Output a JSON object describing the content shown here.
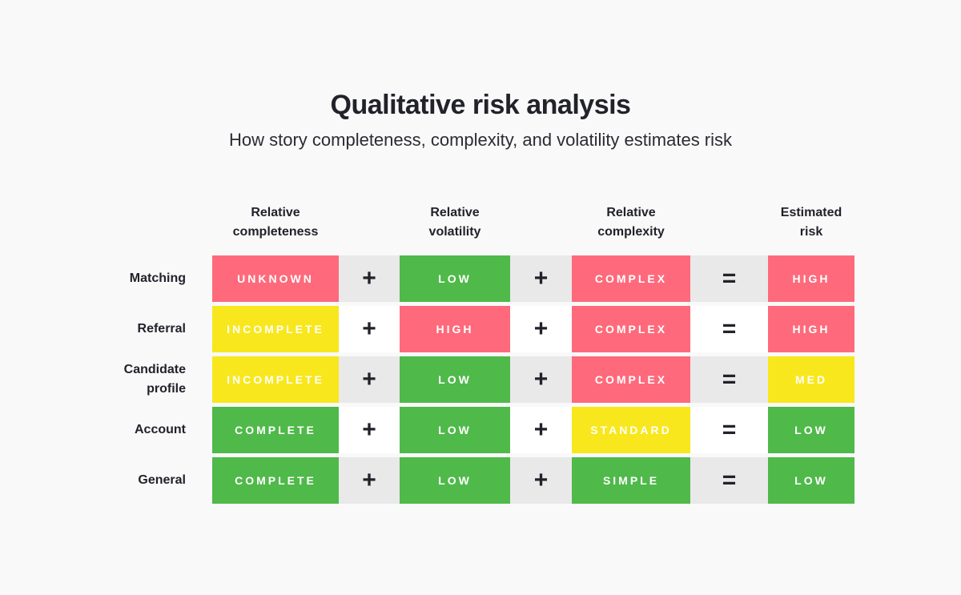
{
  "header": {
    "title": "Qualitative risk analysis",
    "subtitle": "How story completeness, complexity, and volatility estimates risk"
  },
  "columns": [
    {
      "line1": "Relative",
      "line2": "completeness"
    },
    {
      "line1": "Relative",
      "line2": "volatility"
    },
    {
      "line1": "Relative",
      "line2": "complexity"
    },
    {
      "line1": "Estimated",
      "line2": "risk"
    }
  ],
  "operators": {
    "plus": "+",
    "equals": "="
  },
  "colors": {
    "red": "#fe6a7b",
    "green": "#4fb94a",
    "yellow": "#f8e71c",
    "gray_row": "#e9e9e9",
    "white_row": "#ffffff"
  },
  "rows": [
    {
      "label_line1": "Matching",
      "label_line2": "",
      "completeness": "UNKNOWN",
      "volatility": "LOW",
      "complexity": "COMPLEX",
      "risk": "HIGH"
    },
    {
      "label_line1": "Referral",
      "label_line2": "",
      "completeness": "INCOMPLETE",
      "volatility": "HIGH",
      "complexity": "COMPLEX",
      "risk": "HIGH"
    },
    {
      "label_line1": "Candidate",
      "label_line2": "profile",
      "completeness": "INCOMPLETE",
      "volatility": "LOW",
      "complexity": "COMPLEX",
      "risk": "MED"
    },
    {
      "label_line1": "Account",
      "label_line2": "",
      "completeness": "COMPLETE",
      "volatility": "LOW",
      "complexity": "STANDARD",
      "risk": "LOW"
    },
    {
      "label_line1": "General",
      "label_line2": "",
      "completeness": "COMPLETE",
      "volatility": "LOW",
      "complexity": "SIMPLE",
      "risk": "LOW"
    }
  ]
}
